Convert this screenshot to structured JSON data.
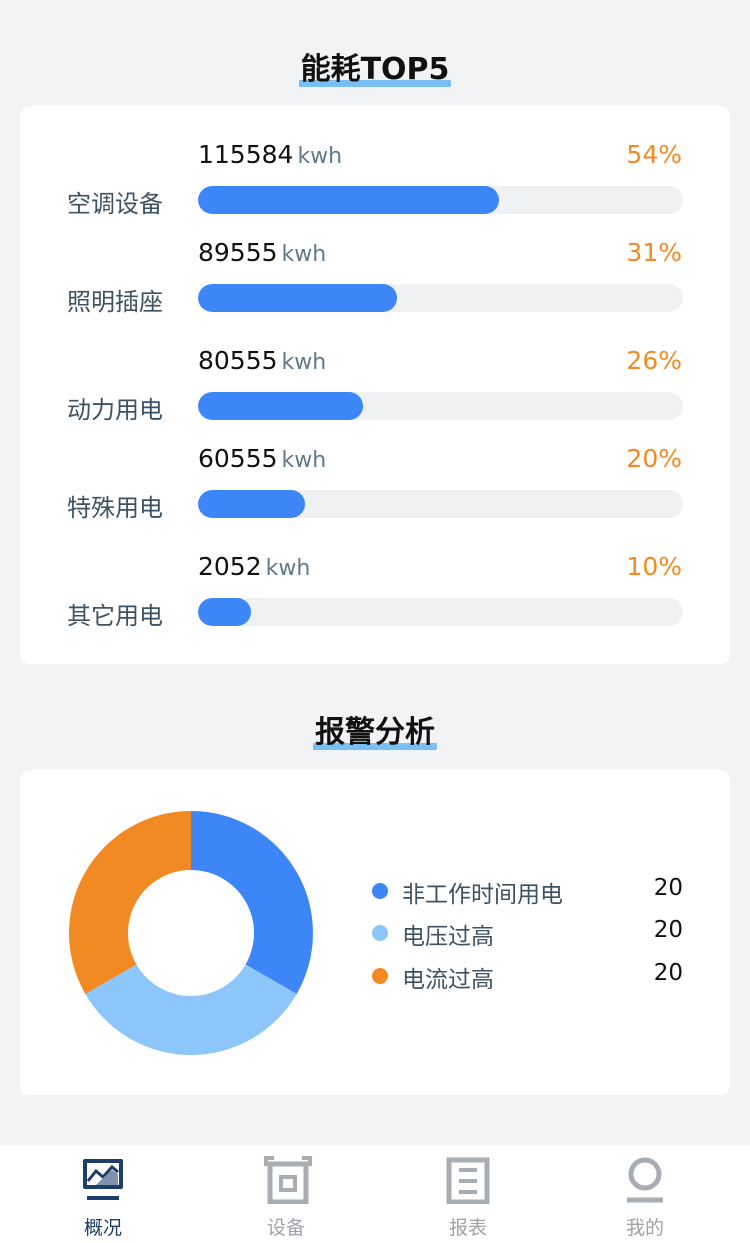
{
  "energy": {
    "title": "能耗TOP5",
    "unit": "kwh",
    "items": [
      {
        "name": "空调设备",
        "value": "115584",
        "percent": "54%",
        "fill": 0.62
      },
      {
        "name": "照明插座",
        "value": "89555",
        "percent": "31%",
        "fill": 0.41
      },
      {
        "name": "动力用电",
        "value": "80555",
        "percent": "26%",
        "fill": 0.34
      },
      {
        "name": "特殊用电",
        "value": "60555",
        "percent": "20%",
        "fill": 0.22
      },
      {
        "name": "其它用电",
        "value": "2052",
        "percent": "10%",
        "fill": 0.11
      }
    ]
  },
  "alarm": {
    "title": "报警分析",
    "legend": [
      {
        "label": "非工作时间用电",
        "count": "20",
        "color": "#3d86f8"
      },
      {
        "label": "电压过高",
        "count": "20",
        "color": "#8cc6fb"
      },
      {
        "label": "电流过高",
        "count": "20",
        "color": "#f28a24"
      }
    ]
  },
  "chart_data": {
    "type": "pie",
    "categories": [
      "非工作时间用电",
      "电压过高",
      "电流过高"
    ],
    "values": [
      20,
      20,
      20
    ],
    "colors": [
      "#3d86f8",
      "#8cc6fb",
      "#f28a24"
    ],
    "donut": true,
    "legend_position": "right"
  },
  "tabs": [
    {
      "label": "概况",
      "icon": "overview-icon",
      "active": true
    },
    {
      "label": "设备",
      "icon": "device-icon",
      "active": false
    },
    {
      "label": "报表",
      "icon": "report-icon",
      "active": false
    },
    {
      "label": "我的",
      "icon": "profile-icon",
      "active": false
    }
  ]
}
